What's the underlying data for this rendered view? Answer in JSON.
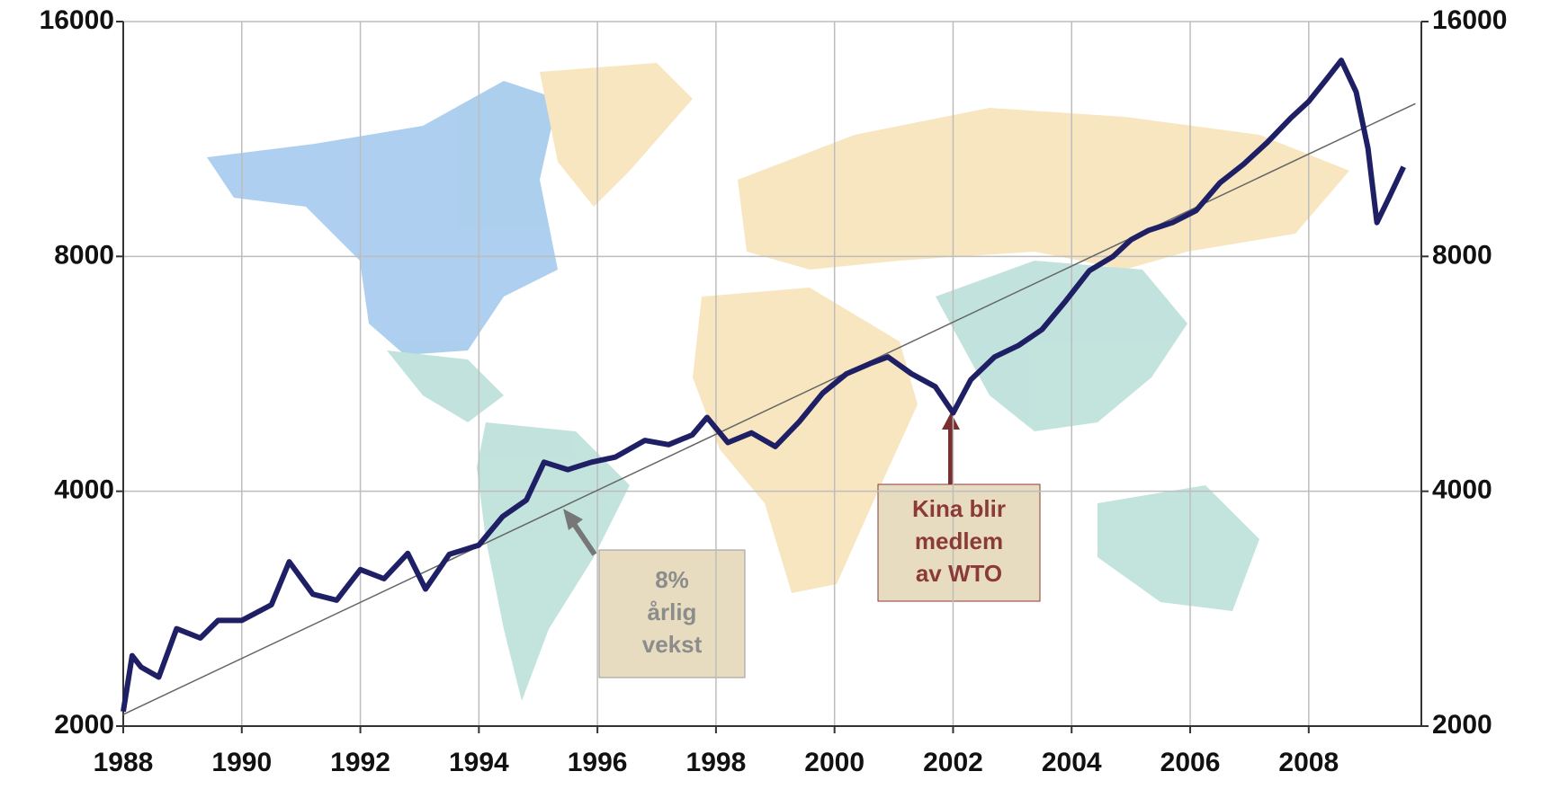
{
  "chart_data": {
    "type": "line",
    "yscale": "log",
    "grid": true,
    "xlim": [
      1988,
      2009.9
    ],
    "xticks": [
      1988,
      1990,
      1992,
      1994,
      1996,
      1998,
      2000,
      2002,
      2004,
      2006,
      2008
    ],
    "ylim": [
      2000,
      16000
    ],
    "yticks": [
      2000,
      4000,
      8000,
      16000
    ],
    "y2lim": [
      2000,
      16000
    ],
    "y2ticks": [
      2000,
      4000,
      8000,
      16000
    ],
    "series": [
      {
        "color": "#1f1f66",
        "x": [
          1988.0,
          1988.15,
          1988.3,
          1988.6,
          1988.9,
          1989.3,
          1989.6,
          1990.0,
          1990.5,
          1990.8,
          1991.2,
          1991.6,
          1992.0,
          1992.4,
          1992.8,
          1993.1,
          1993.5,
          1994.0,
          1994.4,
          1994.8,
          1995.1,
          1995.5,
          1995.9,
          1996.3,
          1996.8,
          1997.2,
          1997.6,
          1997.85,
          1998.2,
          1998.6,
          1999.0,
          1999.4,
          1999.8,
          2000.2,
          2000.6,
          2000.9,
          2001.3,
          2001.7,
          2002.0,
          2002.3,
          2002.7,
          2003.1,
          2003.5,
          2003.9,
          2004.3,
          2004.7,
          2005.0,
          2005.3,
          2005.7,
          2006.1,
          2006.5,
          2006.9,
          2007.3,
          2007.7,
          2008.0,
          2008.3,
          2008.55,
          2008.8,
          2009.0,
          2009.15,
          2009.35,
          2009.6
        ],
        "values": [
          2088,
          2462,
          2381,
          2311,
          2666,
          2594,
          2732,
          2732,
          2861,
          3249,
          2952,
          2900,
          3175,
          3090,
          3330,
          2997,
          3320,
          3412,
          3712,
          3897,
          4359,
          4264,
          4359,
          4424,
          4648,
          4590,
          4723,
          4974,
          4618,
          4752,
          4565,
          4907,
          5343,
          5657,
          5830,
          5946,
          5657,
          5446,
          5040,
          5560,
          5946,
          6148,
          6447,
          7014,
          7670,
          8000,
          8400,
          8640,
          8840,
          9160,
          9940,
          10500,
          11200,
          12040,
          12640,
          13500,
          14270,
          13000,
          11000,
          8840,
          9500,
          10420
        ]
      }
    ],
    "trend": {
      "color": "#666666",
      "x": [
        1988.0,
        2009.8
      ],
      "values": [
        2070,
        12560
      ]
    },
    "annotations": [
      {
        "lines": [
          "8%",
          "årlig",
          "vekst"
        ],
        "color": "#8c8c8c"
      },
      {
        "lines": [
          "Kina blir",
          "medlem",
          "av WTO"
        ],
        "color": "#8b3a3a"
      }
    ]
  }
}
